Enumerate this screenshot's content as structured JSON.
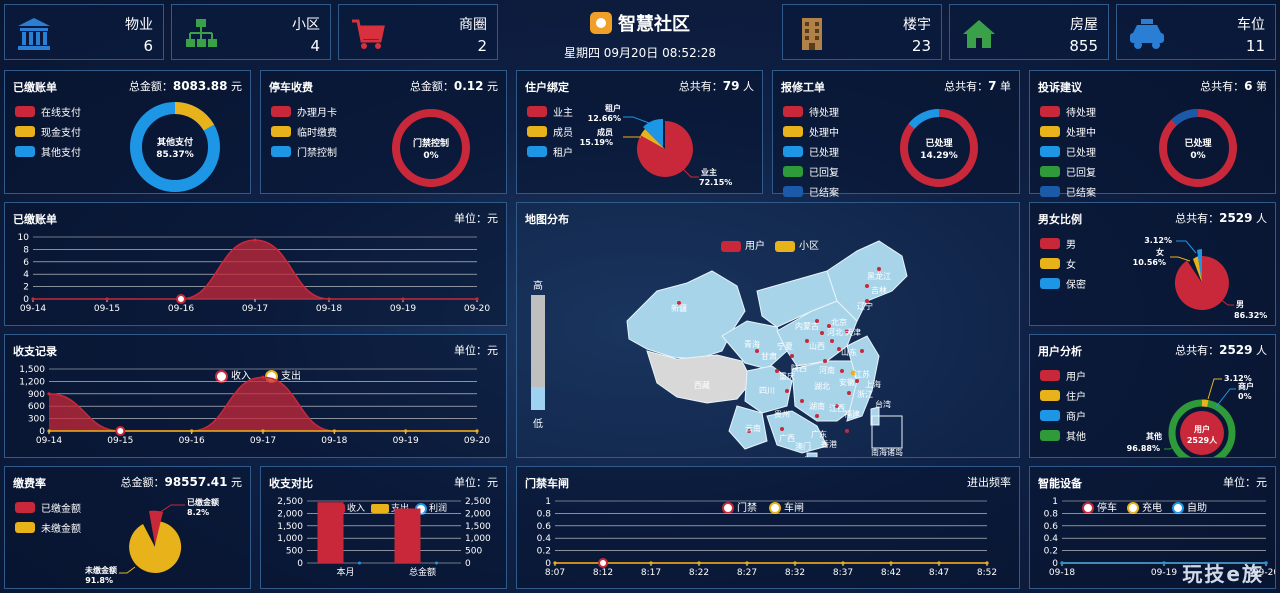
{
  "header": {
    "title": "智慧社区",
    "datetime": "星期四 09月20日 08:52:28"
  },
  "stats": [
    {
      "label": "物业",
      "value": "6",
      "icon": "bank-icon"
    },
    {
      "label": "小区",
      "value": "4",
      "icon": "org-chart-icon"
    },
    {
      "label": "商圈",
      "value": "2",
      "icon": "cart-icon"
    },
    {
      "label": "楼宇",
      "value": "23",
      "icon": "building-icon"
    },
    {
      "label": "房屋",
      "value": "855",
      "icon": "house-icon"
    },
    {
      "label": "车位",
      "value": "11",
      "icon": "car-icon"
    }
  ],
  "panels": {
    "bills": {
      "title": "已缴账单",
      "total_label": "总金额：",
      "total": "8083.88",
      "unit": "元",
      "legend": [
        "在线支付",
        "现金支付",
        "其他支付"
      ],
      "center": "其他支付",
      "center_pct": "85.37%"
    },
    "parking": {
      "title": "停车收费",
      "total_label": "总金额：",
      "total": "0.12",
      "unit": "元",
      "legend": [
        "办理月卡",
        "临时缴费",
        "门禁控制"
      ],
      "center": "门禁控制",
      "center_pct": "0%"
    },
    "resident": {
      "title": "住户绑定",
      "total_label": "总共有：",
      "total": "79",
      "unit": "人",
      "legend": [
        "业主",
        "成员",
        "租户"
      ],
      "labels": [
        {
          "name": "租户",
          "pct": "12.66%"
        },
        {
          "name": "成员",
          "pct": "15.19%"
        },
        {
          "name": "业主",
          "pct": "72.15%"
        }
      ]
    },
    "repair": {
      "title": "报修工单",
      "total_label": "总共有：",
      "total": "7",
      "unit": "单",
      "legend": [
        "待处理",
        "处理中",
        "已处理",
        "已回复",
        "已结案"
      ],
      "center": "已处理",
      "center_pct": "14.29%"
    },
    "complaint": {
      "title": "投诉建议",
      "total_label": "总共有：",
      "total": "6",
      "unit": "第",
      "legend": [
        "待处理",
        "处理中",
        "已处理",
        "已回复",
        "已结案"
      ],
      "center": "已处理",
      "center_pct": "0%"
    },
    "bills_trend": {
      "title": "已缴账单",
      "unit_label": "单位：元"
    },
    "cashflow": {
      "title": "收支记录",
      "unit_label": "单位：元",
      "legend": [
        "收入",
        "支出"
      ]
    },
    "map": {
      "title": "地图分布",
      "legend": [
        "用户",
        "小区"
      ],
      "high": "高",
      "low": "低",
      "provinces": [
        "新疆",
        "西藏",
        "青海",
        "四川",
        "云南",
        "贵州",
        "广西",
        "广东",
        "湖南",
        "湖北",
        "河南",
        "山东",
        "江苏",
        "浙江",
        "福建",
        "江西",
        "安徽",
        "陕西",
        "甘肃",
        "宁夏",
        "内蒙古",
        "黑龙江",
        "吉林",
        "辽宁",
        "河北",
        "山西",
        "北京",
        "天津",
        "上海",
        "重庆",
        "海南",
        "台湾",
        "澳门",
        "香港"
      ],
      "south_sea": "南海诸岛"
    },
    "gender": {
      "title": "男女比例",
      "total_label": "总共有：",
      "total": "2529",
      "unit": "人",
      "legend": [
        "男",
        "女",
        "保密"
      ],
      "labels": [
        {
          "name": "女",
          "pct": "10.56%"
        },
        {
          "name": "",
          "pct": "3.12%"
        },
        {
          "name": "男",
          "pct": "86.32%"
        }
      ]
    },
    "user_analysis": {
      "title": "用户分析",
      "total_label": "总共有：",
      "total": "2529",
      "unit": "人",
      "legend": [
        "用户",
        "住户",
        "商户",
        "其他"
      ],
      "center": "用户",
      "center_val": "2529人",
      "labels": [
        {
          "name": "",
          "pct": "3.12%"
        },
        {
          "name": "商户",
          "pct": "0%"
        },
        {
          "name": "其他",
          "pct": "96.88%"
        }
      ]
    },
    "fee_rate": {
      "title": "缴费率",
      "total_label": "总金额：",
      "total": "98557.41",
      "unit": "元",
      "legend": [
        "已缴金额",
        "未缴金额"
      ],
      "labels": [
        {
          "name": "已缴金额",
          "pct": "8.2%"
        },
        {
          "name": "未缴金额",
          "pct": "91.8%"
        }
      ]
    },
    "compare": {
      "title": "收支对比",
      "unit_label": "单位：元",
      "legend": [
        "收入",
        "支出",
        "利润"
      ]
    },
    "gate": {
      "title": "门禁车闸",
      "right": "进出频率",
      "legend": [
        "门禁",
        "车闸"
      ]
    },
    "devices": {
      "title": "智能设备",
      "unit_label": "单位：元",
      "legend": [
        "停车",
        "充电",
        "自助"
      ]
    }
  },
  "chart_data": [
    {
      "type": "area",
      "name": "bills_trend",
      "x": [
        "09-14",
        "09-15",
        "09-16",
        "09-17",
        "09-18",
        "09-19",
        "09-20"
      ],
      "yticks": [
        0,
        2,
        4,
        6,
        8,
        10
      ],
      "ylim": [
        0,
        10
      ],
      "values": [
        0,
        0,
        0,
        9.5,
        0,
        0,
        0
      ]
    },
    {
      "type": "area",
      "name": "cashflow",
      "x": [
        "09-14",
        "09-15",
        "09-16",
        "09-17",
        "09-18",
        "09-19",
        "09-20"
      ],
      "yticks": [
        0,
        300,
        600,
        900,
        1200,
        1500
      ],
      "ylim": [
        0,
        1500
      ],
      "series": [
        {
          "name": "收入",
          "values": [
            900,
            0,
            0,
            1300,
            0,
            0,
            0
          ]
        },
        {
          "name": "支出",
          "values": [
            0,
            0,
            0,
            0,
            0,
            0,
            0
          ]
        }
      ]
    },
    {
      "type": "bar",
      "name": "compare",
      "categories": [
        "本月",
        "总金额"
      ],
      "yticks": [
        0,
        500,
        1000,
        1500,
        2000,
        2500
      ],
      "ylim": [
        0,
        2500
      ],
      "series": [
        {
          "name": "收入",
          "values": [
            2450,
            2200
          ]
        },
        {
          "name": "支出",
          "values": [
            0,
            0
          ]
        },
        {
          "name": "利润",
          "values": [
            0,
            0
          ]
        }
      ]
    },
    {
      "type": "line",
      "name": "gate",
      "x": [
        "8:07",
        "8:12",
        "8:17",
        "8:22",
        "8:27",
        "8:32",
        "8:37",
        "8:42",
        "8:47",
        "8:52"
      ],
      "yticks": [
        0,
        0.2,
        0.4,
        0.6,
        0.8,
        1
      ],
      "ylim": [
        0,
        1
      ],
      "series": [
        {
          "name": "门禁",
          "values": [
            0,
            0,
            0,
            0,
            0,
            0,
            0,
            0,
            0,
            0
          ]
        },
        {
          "name": "车闸",
          "values": [
            0,
            0,
            0,
            0,
            0,
            0,
            0,
            0,
            0,
            0
          ]
        }
      ]
    },
    {
      "type": "line",
      "name": "devices",
      "x": [
        "09-18",
        "09-19",
        "09-20"
      ],
      "yticks": [
        0,
        0.2,
        0.4,
        0.6,
        0.8,
        1
      ],
      "ylim": [
        0,
        1
      ],
      "series": [
        {
          "name": "停车",
          "values": [
            0,
            0,
            0
          ]
        },
        {
          "name": "充电",
          "values": [
            0,
            0,
            0
          ]
        },
        {
          "name": "自助",
          "values": [
            0,
            0,
            0
          ]
        }
      ]
    }
  ],
  "watermark": "玩技e族",
  "colors": {
    "red": "#c8283a",
    "yellow": "#e8b21a",
    "blue": "#1e96e6",
    "green": "#2e9a3a",
    "darkblue": "#1a5aa8",
    "panel_border": "#2f5a8a"
  }
}
